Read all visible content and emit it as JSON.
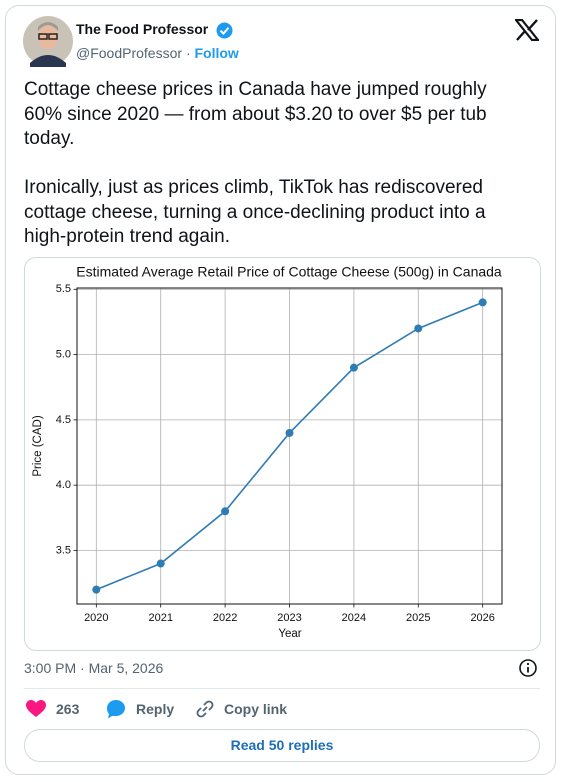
{
  "tweet": {
    "author_name": "The Food Professor",
    "handle": "@FoodProfessor",
    "separator": "·",
    "follow": "Follow",
    "paragraphs": [
      "Cottage cheese prices in Canada have jumped roughly 60% since 2020 — from about $3.20 to over $5 per tub today.",
      "Ironically, just as prices climb, TikTok has rediscovered cottage cheese, turning a once-declining product into a high-protein trend again."
    ],
    "timestamp": "3:00 PM · Mar 5, 2026",
    "likes": "263",
    "reply": "Reply",
    "copy_link": "Copy link",
    "read_replies": "Read 50 replies"
  },
  "chart_data": {
    "type": "line",
    "title": "Estimated Average Retail Price of Cottage Cheese (500g) in Canada",
    "x_label": "Year",
    "y_label": "Price (CAD)",
    "x": [
      2020,
      2021,
      2022,
      2023,
      2024,
      2025,
      2026
    ],
    "values": [
      3.2,
      3.4,
      3.8,
      4.4,
      4.9,
      5.2,
      5.4
    ],
    "color": "#2f7bb4",
    "xlim": [
      2019.7,
      2026.3
    ],
    "xticks": [
      2020,
      2021,
      2022,
      2023,
      2024,
      2025,
      2026
    ],
    "ylim": [
      3.09,
      5.51
    ],
    "yticks": [
      3.5,
      {
        "value": 4,
        "label": "4.0"
      },
      4.5,
      {
        "value": 5,
        "label": "5.0"
      },
      5.5
    ],
    "grid": true
  }
}
